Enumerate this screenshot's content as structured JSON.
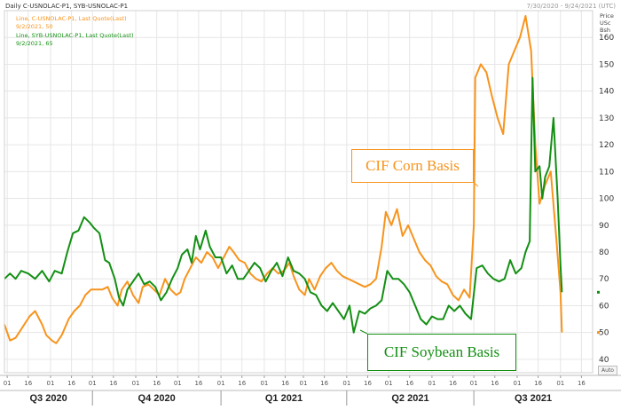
{
  "header": {
    "title": "Daily C-USNOLAC-P1, SYB-USNOLAC-P1",
    "date_range": "7/30/2020 - 9/24/2021 (UTC)",
    "legend_corn_line1": "Line, C-USNOLAC-P1, Last Quote(Last)",
    "legend_corn_line2": "9/2/2021, 50",
    "legend_soy_line1": "Line, SYB-USNOLAC-P1, Last Quote(Last)",
    "legend_soy_line2": "9/2/2021, 65"
  },
  "y_unit_label": "Price\nUSc\nBsh",
  "callouts": {
    "corn": "CIF Corn Basis",
    "soy": "CIF Soybean Basis"
  },
  "auto_button": "Auto",
  "colors": {
    "corn": "#f7941d",
    "soy": "#138f13",
    "grid": "#e6e6e6",
    "axis_text": "#333333"
  },
  "chart_data": {
    "type": "line",
    "title": "Daily C-USNOLAC-P1, SYB-USNOLAC-P1",
    "ylabel": "Price USc Bsh",
    "xlabel": "",
    "ylim": [
      35,
      170
    ],
    "yticks": [
      40,
      50,
      60,
      70,
      80,
      90,
      100,
      110,
      120,
      130,
      140,
      150,
      160
    ],
    "grid": true,
    "x_range": [
      "2020-07-30",
      "2021-09-24"
    ],
    "x_ticks": [
      {
        "date": "2020-08-01",
        "label": "01"
      },
      {
        "date": "2020-08-16",
        "label": "16"
      },
      {
        "date": "2020-09-01",
        "label": "01"
      },
      {
        "date": "2020-09-16",
        "label": "16"
      },
      {
        "date": "2020-10-01",
        "label": "01"
      },
      {
        "date": "2020-10-16",
        "label": "16"
      },
      {
        "date": "2020-11-01",
        "label": "01"
      },
      {
        "date": "2020-11-16",
        "label": "16"
      },
      {
        "date": "2020-12-01",
        "label": "01"
      },
      {
        "date": "2020-12-16",
        "label": "16"
      },
      {
        "date": "2021-01-01",
        "label": "01"
      },
      {
        "date": "2021-01-16",
        "label": "16"
      },
      {
        "date": "2021-02-01",
        "label": "01"
      },
      {
        "date": "2021-02-16",
        "label": "16"
      },
      {
        "date": "2021-03-01",
        "label": "01"
      },
      {
        "date": "2021-03-16",
        "label": "16"
      },
      {
        "date": "2021-04-01",
        "label": "01"
      },
      {
        "date": "2021-04-16",
        "label": "16"
      },
      {
        "date": "2021-05-01",
        "label": "01"
      },
      {
        "date": "2021-05-16",
        "label": "16"
      },
      {
        "date": "2021-06-01",
        "label": "01"
      },
      {
        "date": "2021-06-16",
        "label": "16"
      },
      {
        "date": "2021-07-01",
        "label": "01"
      },
      {
        "date": "2021-07-16",
        "label": "16"
      },
      {
        "date": "2021-08-01",
        "label": "01"
      },
      {
        "date": "2021-08-16",
        "label": "16"
      },
      {
        "date": "2021-09-01",
        "label": "01"
      },
      {
        "date": "2021-09-16",
        "label": "16"
      }
    ],
    "quarters": [
      {
        "label": "Q3 2020",
        "start": "2020-07-30",
        "end": "2020-10-01"
      },
      {
        "label": "Q4 2020",
        "start": "2020-10-01",
        "end": "2021-01-01"
      },
      {
        "label": "Q1 2021",
        "start": "2021-01-01",
        "end": "2021-04-01"
      },
      {
        "label": "Q2 2021",
        "start": "2021-04-01",
        "end": "2021-07-01"
      },
      {
        "label": "Q3 2021",
        "start": "2021-07-01",
        "end": "2021-09-24"
      }
    ],
    "series": [
      {
        "name": "C-USNOLAC-P1",
        "color": "#f7941d",
        "points": [
          [
            "2020-07-30",
            53
          ],
          [
            "2020-08-03",
            47
          ],
          [
            "2020-08-07",
            48
          ],
          [
            "2020-08-12",
            52
          ],
          [
            "2020-08-17",
            56
          ],
          [
            "2020-08-21",
            58
          ],
          [
            "2020-08-26",
            53
          ],
          [
            "2020-08-29",
            49
          ],
          [
            "2020-09-02",
            47
          ],
          [
            "2020-09-05",
            46
          ],
          [
            "2020-09-09",
            49
          ],
          [
            "2020-09-14",
            55
          ],
          [
            "2020-09-18",
            58
          ],
          [
            "2020-09-22",
            60
          ],
          [
            "2020-09-26",
            64
          ],
          [
            "2020-09-30",
            66
          ],
          [
            "2020-10-04",
            66
          ],
          [
            "2020-10-08",
            66
          ],
          [
            "2020-10-12",
            67
          ],
          [
            "2020-10-15",
            63
          ],
          [
            "2020-10-19",
            60
          ],
          [
            "2020-10-22",
            66
          ],
          [
            "2020-10-26",
            69
          ],
          [
            "2020-10-30",
            64
          ],
          [
            "2020-11-03",
            61
          ],
          [
            "2020-11-06",
            67
          ],
          [
            "2020-11-10",
            68
          ],
          [
            "2020-11-14",
            66
          ],
          [
            "2020-11-18",
            64
          ],
          [
            "2020-11-22",
            70
          ],
          [
            "2020-11-26",
            66
          ],
          [
            "2020-11-30",
            64
          ],
          [
            "2020-12-03",
            65
          ],
          [
            "2020-12-06",
            70
          ],
          [
            "2020-12-10",
            74
          ],
          [
            "2020-12-14",
            78
          ],
          [
            "2020-12-18",
            76
          ],
          [
            "2020-12-22",
            80
          ],
          [
            "2020-12-26",
            78
          ],
          [
            "2020-12-30",
            74
          ],
          [
            "2021-01-03",
            78
          ],
          [
            "2021-01-07",
            82
          ],
          [
            "2021-01-10",
            80
          ],
          [
            "2021-01-14",
            77
          ],
          [
            "2021-01-18",
            76
          ],
          [
            "2021-01-22",
            72
          ],
          [
            "2021-01-26",
            70
          ],
          [
            "2021-01-30",
            69
          ],
          [
            "2021-02-03",
            72
          ],
          [
            "2021-02-07",
            74
          ],
          [
            "2021-02-11",
            72
          ],
          [
            "2021-02-15",
            73
          ],
          [
            "2021-02-19",
            76
          ],
          [
            "2021-02-22",
            71
          ],
          [
            "2021-02-26",
            66
          ],
          [
            "2021-03-02",
            64
          ],
          [
            "2021-03-05",
            70
          ],
          [
            "2021-03-09",
            66
          ],
          [
            "2021-03-13",
            71
          ],
          [
            "2021-03-17",
            74
          ],
          [
            "2021-03-21",
            76
          ],
          [
            "2021-03-25",
            73
          ],
          [
            "2021-03-29",
            71
          ],
          [
            "2021-04-02",
            70
          ],
          [
            "2021-04-06",
            69
          ],
          [
            "2021-04-10",
            68
          ],
          [
            "2021-04-14",
            67
          ],
          [
            "2021-04-18",
            68
          ],
          [
            "2021-04-22",
            70
          ],
          [
            "2021-04-26",
            82
          ],
          [
            "2021-04-29",
            95
          ],
          [
            "2021-05-03",
            90
          ],
          [
            "2021-05-07",
            96
          ],
          [
            "2021-05-11",
            86
          ],
          [
            "2021-05-15",
            90
          ],
          [
            "2021-05-19",
            85
          ],
          [
            "2021-05-23",
            80
          ],
          [
            "2021-05-27",
            77
          ],
          [
            "2021-05-31",
            75
          ],
          [
            "2021-06-04",
            71
          ],
          [
            "2021-06-08",
            69
          ],
          [
            "2021-06-12",
            68
          ],
          [
            "2021-06-16",
            64
          ],
          [
            "2021-06-20",
            62
          ],
          [
            "2021-06-24",
            66
          ],
          [
            "2021-06-28",
            63
          ],
          [
            "2021-07-01",
            90
          ],
          [
            "2021-07-02",
            145
          ],
          [
            "2021-07-06",
            150
          ],
          [
            "2021-07-10",
            147
          ],
          [
            "2021-07-14",
            138
          ],
          [
            "2021-07-18",
            130
          ],
          [
            "2021-07-22",
            124
          ],
          [
            "2021-07-26",
            150
          ],
          [
            "2021-07-30",
            155
          ],
          [
            "2021-08-03",
            160
          ],
          [
            "2021-08-07",
            168
          ],
          [
            "2021-08-11",
            155
          ],
          [
            "2021-08-14",
            120
          ],
          [
            "2021-08-17",
            98
          ],
          [
            "2021-08-21",
            105
          ],
          [
            "2021-08-25",
            110
          ],
          [
            "2021-08-29",
            85
          ],
          [
            "2021-09-01",
            65
          ],
          [
            "2021-09-02",
            50
          ]
        ]
      },
      {
        "name": "SYB-USNOLAC-P1",
        "color": "#138f13",
        "points": [
          [
            "2020-07-30",
            70
          ],
          [
            "2020-08-03",
            72
          ],
          [
            "2020-08-07",
            70
          ],
          [
            "2020-08-11",
            73
          ],
          [
            "2020-08-16",
            72
          ],
          [
            "2020-08-21",
            70
          ],
          [
            "2020-08-26",
            73
          ],
          [
            "2020-08-31",
            69
          ],
          [
            "2020-09-04",
            73
          ],
          [
            "2020-09-09",
            72
          ],
          [
            "2020-09-13",
            80
          ],
          [
            "2020-09-17",
            87
          ],
          [
            "2020-09-21",
            88
          ],
          [
            "2020-09-25",
            93
          ],
          [
            "2020-09-29",
            91
          ],
          [
            "2020-10-02",
            89
          ],
          [
            "2020-10-06",
            87
          ],
          [
            "2020-10-10",
            77
          ],
          [
            "2020-10-13",
            76
          ],
          [
            "2020-10-17",
            70
          ],
          [
            "2020-10-20",
            63
          ],
          [
            "2020-10-23",
            60
          ],
          [
            "2020-10-26",
            66
          ],
          [
            "2020-10-30",
            69
          ],
          [
            "2020-11-03",
            72
          ],
          [
            "2020-11-07",
            68
          ],
          [
            "2020-11-11",
            69
          ],
          [
            "2020-11-15",
            67
          ],
          [
            "2020-11-19",
            62
          ],
          [
            "2020-11-23",
            65
          ],
          [
            "2020-11-27",
            70
          ],
          [
            "2020-12-01",
            74
          ],
          [
            "2020-12-04",
            79
          ],
          [
            "2020-12-08",
            81
          ],
          [
            "2020-12-11",
            76
          ],
          [
            "2020-12-14",
            86
          ],
          [
            "2020-12-17",
            81
          ],
          [
            "2020-12-21",
            88
          ],
          [
            "2020-12-24",
            82
          ],
          [
            "2020-12-28",
            78
          ],
          [
            "2021-01-01",
            78
          ],
          [
            "2021-01-05",
            72
          ],
          [
            "2021-01-09",
            75
          ],
          [
            "2021-01-13",
            70
          ],
          [
            "2021-01-17",
            70
          ],
          [
            "2021-01-21",
            73
          ],
          [
            "2021-01-25",
            76
          ],
          [
            "2021-01-29",
            74
          ],
          [
            "2021-02-02",
            69
          ],
          [
            "2021-02-06",
            73
          ],
          [
            "2021-02-10",
            76
          ],
          [
            "2021-02-14",
            71
          ],
          [
            "2021-02-18",
            78
          ],
          [
            "2021-02-22",
            73
          ],
          [
            "2021-02-26",
            72
          ],
          [
            "2021-03-02",
            70
          ],
          [
            "2021-03-06",
            65
          ],
          [
            "2021-03-10",
            64
          ],
          [
            "2021-03-14",
            60
          ],
          [
            "2021-03-18",
            58
          ],
          [
            "2021-03-22",
            61
          ],
          [
            "2021-03-26",
            58
          ],
          [
            "2021-03-30",
            55
          ],
          [
            "2021-04-03",
            60
          ],
          [
            "2021-04-06",
            50
          ],
          [
            "2021-04-10",
            58
          ],
          [
            "2021-04-14",
            57
          ],
          [
            "2021-04-18",
            59
          ],
          [
            "2021-04-22",
            60
          ],
          [
            "2021-04-26",
            62
          ],
          [
            "2021-04-30",
            73
          ],
          [
            "2021-05-04",
            70
          ],
          [
            "2021-05-08",
            70
          ],
          [
            "2021-05-12",
            68
          ],
          [
            "2021-05-16",
            65
          ],
          [
            "2021-05-20",
            60
          ],
          [
            "2021-05-24",
            55
          ],
          [
            "2021-05-28",
            53
          ],
          [
            "2021-06-01",
            56
          ],
          [
            "2021-06-05",
            55
          ],
          [
            "2021-06-09",
            55
          ],
          [
            "2021-06-13",
            60
          ],
          [
            "2021-06-17",
            58
          ],
          [
            "2021-06-21",
            60
          ],
          [
            "2021-06-25",
            57
          ],
          [
            "2021-06-29",
            55
          ],
          [
            "2021-07-03",
            74
          ],
          [
            "2021-07-07",
            75
          ],
          [
            "2021-07-11",
            72
          ],
          [
            "2021-07-15",
            70
          ],
          [
            "2021-07-19",
            69
          ],
          [
            "2021-07-23",
            70
          ],
          [
            "2021-07-27",
            77
          ],
          [
            "2021-07-31",
            72
          ],
          [
            "2021-08-04",
            74
          ],
          [
            "2021-08-07",
            80
          ],
          [
            "2021-08-10",
            84
          ],
          [
            "2021-08-12",
            145
          ],
          [
            "2021-08-14",
            110
          ],
          [
            "2021-08-17",
            112
          ],
          [
            "2021-08-19",
            100
          ],
          [
            "2021-08-21",
            108
          ],
          [
            "2021-08-24",
            112
          ],
          [
            "2021-08-27",
            130
          ],
          [
            "2021-08-30",
            100
          ],
          [
            "2021-09-01",
            75
          ],
          [
            "2021-09-02",
            65
          ]
        ]
      }
    ],
    "last_values": [
      {
        "series": "SYB-USNOLAC-P1",
        "value": 65
      },
      {
        "series": "C-USNOLAC-P1",
        "value": 50
      }
    ]
  }
}
